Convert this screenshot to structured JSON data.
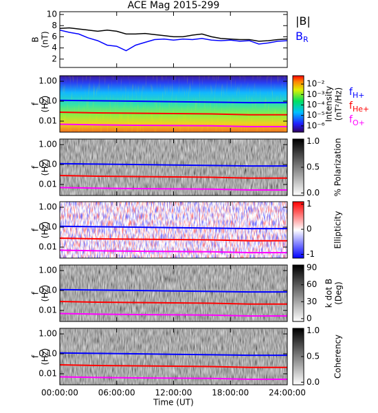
{
  "chart_data": [
    {
      "type": "line",
      "title": "ACE Mag 2015-299",
      "ylabel": [
        "B",
        "(nT)"
      ],
      "xlim": [
        0,
        24
      ],
      "ylim": [
        0.5,
        10.5
      ],
      "yticks": [
        2,
        4,
        6,
        8,
        10
      ],
      "x": [
        0,
        1,
        2,
        3,
        4,
        5,
        6,
        7,
        8,
        9,
        10,
        11,
        12,
        13,
        14,
        15,
        16,
        17,
        18,
        19,
        20,
        21,
        22,
        23,
        24
      ],
      "series": [
        {
          "name": "|B|",
          "color": "#000000",
          "values": [
            7.5,
            7.6,
            7.4,
            7.2,
            7.0,
            7.2,
            7.0,
            6.5,
            6.5,
            6.6,
            6.4,
            6.2,
            6.0,
            6.0,
            6.3,
            6.5,
            6.0,
            5.7,
            5.6,
            5.5,
            5.5,
            5.2,
            5.3,
            5.5,
            5.6
          ]
        },
        {
          "name": "B",
          "subscript": "R",
          "color": "#0000ff",
          "values": [
            7.2,
            6.8,
            6.5,
            5.8,
            5.3,
            4.5,
            4.3,
            3.5,
            4.5,
            5.0,
            5.5,
            5.6,
            5.4,
            5.6,
            5.5,
            5.7,
            5.4,
            5.3,
            5.4,
            5.2,
            5.3,
            4.7,
            4.9,
            5.2,
            5.3
          ]
        }
      ]
    },
    {
      "type": "spectrogram",
      "colormap": "rainbow",
      "ylabel": [
        "f",
        "(Hz)"
      ],
      "ylog": true,
      "xlim": [
        0,
        24
      ],
      "ylim": [
        0.0028,
        1.9
      ],
      "yticks": [
        {
          "value": 1,
          "label": "1.00"
        },
        {
          "value": 0.1,
          "label": "0.10"
        },
        0.01
      ],
      "colorbar": {
        "label": [
          "Intensity",
          "(nT²/Hz)"
        ],
        "log": true,
        "lim": [
          2.5e-07,
          0.063
        ],
        "colormap": "rainbow",
        "ticks": [
          {
            "value": 0.01,
            "label": "10⁻²"
          },
          {
            "value": 0.001,
            "label": "10⁻³"
          },
          {
            "value": 0.0001,
            "label": "10⁻⁴"
          },
          {
            "value": 1e-05,
            "label": "10⁻⁵"
          },
          {
            "value": 1e-06,
            "label": "10⁻⁶"
          }
        ]
      },
      "x": [
        0,
        4,
        8,
        12,
        16,
        20,
        24
      ],
      "series": [
        {
          "name": "f",
          "subscript": "H+",
          "color": "#0000ff",
          "values": [
            0.11,
            0.105,
            0.1,
            0.095,
            0.09,
            0.085,
            0.085
          ]
        },
        {
          "name": "f",
          "subscript": "He+",
          "color": "#ff0000",
          "values": [
            0.028,
            0.026,
            0.025,
            0.024,
            0.023,
            0.021,
            0.021
          ]
        },
        {
          "name": "f",
          "subscript": "O+",
          "color": "#ff00ff",
          "values": [
            0.007,
            0.0065,
            0.0062,
            0.006,
            0.0058,
            0.0053,
            0.0053
          ]
        }
      ]
    },
    {
      "type": "spectrogram",
      "colormap": "gray",
      "ylabel": [
        "f",
        "(Hz)"
      ],
      "ylog": true,
      "xlim": [
        0,
        24
      ],
      "ylim": [
        0.0028,
        1.9
      ],
      "yticks": [
        {
          "value": 1,
          "label": "1.00"
        },
        {
          "value": 0.1,
          "label": "0.10"
        },
        0.01
      ],
      "colorbar": {
        "label": [
          "% Polarization"
        ],
        "lim": [
          -0.05,
          1.05
        ],
        "colormap": "gray",
        "ticks": [
          {
            "value": 1,
            "label": "1.0"
          },
          0.5,
          {
            "value": 0,
            "label": "0.0"
          }
        ]
      },
      "x": [
        0,
        4,
        8,
        12,
        16,
        20,
        24
      ],
      "series": [
        {
          "color": "#0000ff",
          "values": [
            0.11,
            0.105,
            0.1,
            0.095,
            0.09,
            0.085,
            0.085
          ]
        },
        {
          "color": "#ff0000",
          "values": [
            0.028,
            0.026,
            0.025,
            0.024,
            0.023,
            0.021,
            0.021
          ]
        },
        {
          "color": "#ff00ff",
          "values": [
            0.007,
            0.0065,
            0.0062,
            0.006,
            0.0058,
            0.0053,
            0.0053
          ]
        }
      ]
    },
    {
      "type": "spectrogram",
      "colormap": "bwr",
      "ylabel": [
        "f",
        "(Hz)"
      ],
      "ylog": true,
      "xlim": [
        0,
        24
      ],
      "ylim": [
        0.0028,
        1.9
      ],
      "yticks": [
        {
          "value": 1,
          "label": "1.00"
        },
        {
          "value": 0.1,
          "label": "0.10"
        },
        0.01
      ],
      "colorbar": {
        "label": [
          "Ellipticity"
        ],
        "lim": [
          -1.15,
          1.1
        ],
        "colormap": "bwr",
        "ticks": [
          1,
          0,
          -1
        ]
      },
      "x": [
        0,
        4,
        8,
        12,
        16,
        20,
        24
      ],
      "series": [
        {
          "color": "#0000ff",
          "values": [
            0.11,
            0.105,
            0.1,
            0.095,
            0.09,
            0.085,
            0.085
          ]
        },
        {
          "color": "#ff0000",
          "values": [
            0.028,
            0.026,
            0.025,
            0.024,
            0.023,
            0.021,
            0.021
          ]
        },
        {
          "color": "#ff00ff",
          "values": [
            0.007,
            0.0065,
            0.0062,
            0.006,
            0.0058,
            0.0053,
            0.0053
          ]
        }
      ]
    },
    {
      "type": "spectrogram",
      "colormap": "gray",
      "ylabel": [
        "f",
        "(Hz)"
      ],
      "ylog": true,
      "xlim": [
        0,
        24
      ],
      "ylim": [
        0.0028,
        1.9
      ],
      "yticks": [
        {
          "value": 1,
          "label": "1.00"
        },
        {
          "value": 0.1,
          "label": "0.10"
        },
        0.01
      ],
      "colorbar": {
        "label": [
          "k dot B",
          "(Deg)"
        ],
        "lim": [
          -5,
          95
        ],
        "colormap": "gray",
        "ticks": [
          90,
          60,
          30,
          0
        ]
      },
      "x": [
        0,
        4,
        8,
        12,
        16,
        20,
        24
      ],
      "series": [
        {
          "color": "#0000ff",
          "values": [
            0.11,
            0.105,
            0.1,
            0.095,
            0.09,
            0.085,
            0.085
          ]
        },
        {
          "color": "#ff0000",
          "values": [
            0.028,
            0.026,
            0.025,
            0.024,
            0.023,
            0.021,
            0.021
          ]
        },
        {
          "color": "#ff00ff",
          "values": [
            0.007,
            0.0065,
            0.0062,
            0.006,
            0.0058,
            0.0053,
            0.0053
          ]
        }
      ]
    },
    {
      "type": "spectrogram",
      "colormap": "gray",
      "ylabel": [
        "f",
        "(Hz)"
      ],
      "ylog": true,
      "xlim": [
        0,
        24
      ],
      "ylim": [
        0.0028,
        1.9
      ],
      "yticks": [
        {
          "value": 1,
          "label": "1.00"
        },
        {
          "value": 0.1,
          "label": "0.10"
        },
        0.01
      ],
      "colorbar": {
        "label": [
          "Coherency"
        ],
        "lim": [
          -0.05,
          1.05
        ],
        "colormap": "gray",
        "ticks": [
          {
            "value": 1,
            "label": "1.0"
          },
          0.5,
          {
            "value": 0,
            "label": "0.0"
          }
        ]
      },
      "xlabel": "Time (UT)",
      "xticks": [
        {
          "value": 0,
          "label": "00:00:00"
        },
        {
          "value": 6,
          "label": "06:00:00"
        },
        {
          "value": 12,
          "label": "12:00:00"
        },
        {
          "value": 18,
          "label": "18:00:00"
        },
        {
          "value": 24,
          "label": "24:00:00"
        }
      ],
      "x": [
        0,
        4,
        8,
        12,
        16,
        20,
        24
      ],
      "series": [
        {
          "color": "#0000ff",
          "values": [
            0.11,
            0.105,
            0.1,
            0.095,
            0.09,
            0.085,
            0.085
          ]
        },
        {
          "color": "#ff0000",
          "values": [
            0.028,
            0.026,
            0.025,
            0.024,
            0.023,
            0.021,
            0.021
          ]
        },
        {
          "color": "#ff00ff",
          "values": [
            0.007,
            0.0065,
            0.0062,
            0.006,
            0.0058,
            0.0053,
            0.0053
          ]
        }
      ]
    }
  ]
}
